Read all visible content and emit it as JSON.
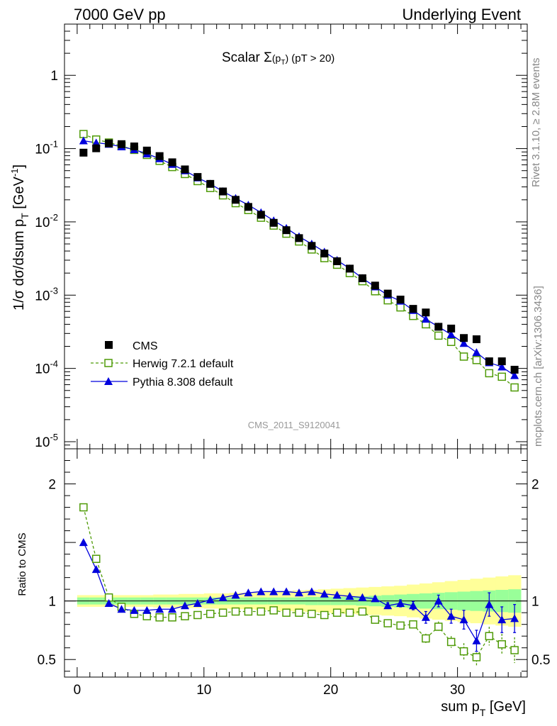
{
  "header": {
    "left": "7000 GeV pp",
    "right": "Underlying Event"
  },
  "side_labels": {
    "rivet": "Rivet 3.1.10, ≥ 2.8M events",
    "mcplots": "mcplots.cern.ch [arXiv:1306.3436]"
  },
  "chart_data": {
    "type": "scatter",
    "title": "Scalar Σ(pT) (pT > 20)",
    "watermark": "CMS_2011_S9120041",
    "xlabel": "sum pT [GeV]",
    "ylabel_main": "1/σ dσ/dsum pT [GeV-1]",
    "ylabel_ratio": "Ratio to CMS",
    "xlim": [
      -1,
      35.5
    ],
    "ylim_main": [
      8e-06,
      5
    ],
    "yscale_main": "log",
    "ylim_ratio": [
      0.35,
      2.3
    ],
    "x_ticks": [
      0,
      10,
      20,
      30
    ],
    "y_ticks_main": [
      {
        "value": 1,
        "base": "1",
        "exp": ""
      },
      {
        "value": 0.1,
        "base": "10",
        "exp": "-1"
      },
      {
        "value": 0.01,
        "base": "10",
        "exp": "-2"
      },
      {
        "value": 0.001,
        "base": "10",
        "exp": "-3"
      },
      {
        "value": 0.0001,
        "base": "10",
        "exp": "-4"
      },
      {
        "value": 1e-05,
        "base": "10",
        "exp": "-5"
      }
    ],
    "y_ticks_ratio": [
      {
        "value": 2,
        "label": "2"
      },
      {
        "value": 1,
        "label": "1"
      },
      {
        "value": 0.5,
        "label": "0.5"
      }
    ],
    "legend": [
      {
        "label": "CMS",
        "marker": "square-filled",
        "color": "#000000"
      },
      {
        "label": "Herwig 7.2.1 default",
        "marker": "square-open",
        "color": "#4e9a06",
        "dash": true
      },
      {
        "label": "Pythia 8.308 default",
        "marker": "triangle",
        "color": "#0000dd"
      }
    ],
    "legend_position": "bottom-left",
    "x": [
      0.5,
      1.5,
      2.5,
      3.5,
      4.5,
      5.5,
      6.5,
      7.5,
      8.5,
      9.5,
      10.5,
      11.5,
      12.5,
      13.5,
      14.5,
      15.5,
      16.5,
      17.5,
      18.5,
      19.5,
      20.5,
      21.5,
      22.5,
      23.5,
      24.5,
      25.5,
      26.5,
      27.5,
      28.5,
      29.5,
      30.5,
      31.5,
      32.5,
      33.5,
      34.5
    ],
    "series": [
      {
        "name": "CMS",
        "color": "#000000",
        "values": [
          0.088,
          0.101,
          0.118,
          0.115,
          0.107,
          0.094,
          0.079,
          0.065,
          0.052,
          0.041,
          0.033,
          0.026,
          0.02,
          0.016,
          0.0125,
          0.0097,
          0.0077,
          0.006,
          0.0047,
          0.0037,
          0.0029,
          0.0023,
          0.0017,
          0.00135,
          0.00105,
          0.00087,
          0.00065,
          0.00058,
          0.00037,
          0.00035,
          0.00026,
          0.00025,
          0.000125,
          0.000125,
          9.6e-05
        ]
      },
      {
        "name": "Herwig 7.2.1 default",
        "color": "#4e9a06",
        "values": [
          0.158,
          0.133,
          0.121,
          0.109,
          0.096,
          0.082,
          0.068,
          0.056,
          0.045,
          0.036,
          0.029,
          0.023,
          0.018,
          0.0145,
          0.0114,
          0.0089,
          0.0069,
          0.0054,
          0.0042,
          0.0032,
          0.0026,
          0.002,
          0.00155,
          0.00113,
          0.00085,
          0.00068,
          0.00052,
          0.0004,
          0.00028,
          0.00023,
          0.000145,
          0.00013,
          8.6e-05,
          7.7e-05,
          5.5e-05
        ]
      },
      {
        "name": "Pythia 8.308 default",
        "color": "#0000dd",
        "values": [
          0.128,
          0.12,
          0.115,
          0.106,
          0.097,
          0.085,
          0.073,
          0.061,
          0.05,
          0.04,
          0.033,
          0.026,
          0.021,
          0.017,
          0.0134,
          0.0104,
          0.0082,
          0.0063,
          0.005,
          0.0039,
          0.003,
          0.0023,
          0.0017,
          0.0013,
          0.001,
          0.00083,
          0.00062,
          0.00047,
          0.00037,
          0.00029,
          0.00022,
          0.000165,
          0.00012,
          0.000105,
          8e-05
        ]
      }
    ],
    "ratio_series": [
      {
        "name": "Herwig 7.2.1 default",
        "color": "#4e9a06",
        "values": [
          1.8,
          1.36,
          1.03,
          0.95,
          0.89,
          0.87,
          0.86,
          0.86,
          0.87,
          0.88,
          0.89,
          0.9,
          0.91,
          0.91,
          0.91,
          0.92,
          0.9,
          0.9,
          0.89,
          0.88,
          0.9,
          0.9,
          0.91,
          0.84,
          0.81,
          0.79,
          0.8,
          0.68,
          0.78,
          0.65,
          0.57,
          0.52,
          0.7,
          0.63,
          0.58
        ],
        "errors": [
          0.01,
          0.01,
          0.01,
          0.01,
          0.01,
          0.01,
          0.01,
          0.01,
          0.01,
          0.01,
          0.01,
          0.01,
          0.01,
          0.01,
          0.01,
          0.01,
          0.01,
          0.01,
          0.01,
          0.01,
          0.01,
          0.01,
          0.015,
          0.02,
          0.02,
          0.025,
          0.03,
          0.04,
          0.045,
          0.05,
          0.07,
          0.07,
          0.08,
          0.09,
          0.11
        ]
      },
      {
        "name": "Pythia 8.308 default",
        "color": "#0000dd",
        "values": [
          1.5,
          1.27,
          0.98,
          0.93,
          0.92,
          0.92,
          0.93,
          0.93,
          0.96,
          0.98,
          1.01,
          1.03,
          1.05,
          1.07,
          1.08,
          1.08,
          1.08,
          1.07,
          1.08,
          1.06,
          1.05,
          1.04,
          1.03,
          1.02,
          0.96,
          0.98,
          0.96,
          0.86,
          1.0,
          0.87,
          0.84,
          0.66,
          0.97,
          0.84,
          0.85
        ],
        "errors": [
          0.01,
          0.01,
          0.01,
          0.01,
          0.01,
          0.01,
          0.01,
          0.01,
          0.01,
          0.01,
          0.01,
          0.01,
          0.01,
          0.01,
          0.01,
          0.01,
          0.01,
          0.01,
          0.01,
          0.01,
          0.01,
          0.01,
          0.015,
          0.02,
          0.025,
          0.03,
          0.035,
          0.05,
          0.05,
          0.06,
          0.08,
          0.09,
          0.1,
          0.11,
          0.12
        ]
      }
    ],
    "ratio_bands": {
      "inner_color": "#99ff99",
      "outer_color": "#ffff99",
      "inner_halfwidth": [
        0.03,
        0.03,
        0.03,
        0.03,
        0.03,
        0.03,
        0.03,
        0.03,
        0.03,
        0.03,
        0.03,
        0.03,
        0.03,
        0.03,
        0.03,
        0.03,
        0.03,
        0.03,
        0.035,
        0.035,
        0.035,
        0.035,
        0.04,
        0.045,
        0.05,
        0.055,
        0.06,
        0.065,
        0.07,
        0.075,
        0.08,
        0.085,
        0.09,
        0.095,
        0.1
      ],
      "outer_halfwidth": [
        0.05,
        0.05,
        0.05,
        0.05,
        0.05,
        0.05,
        0.055,
        0.055,
        0.06,
        0.06,
        0.065,
        0.065,
        0.07,
        0.07,
        0.075,
        0.08,
        0.085,
        0.09,
        0.095,
        0.1,
        0.105,
        0.11,
        0.115,
        0.12,
        0.125,
        0.13,
        0.14,
        0.15,
        0.16,
        0.17,
        0.18,
        0.19,
        0.2,
        0.21,
        0.22
      ]
    }
  }
}
